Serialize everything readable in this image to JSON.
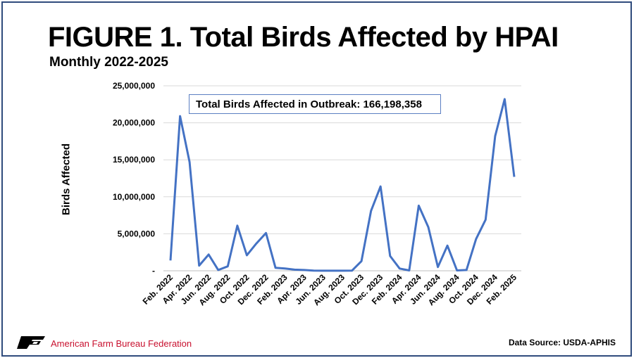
{
  "title": "FIGURE 1. Total Birds Affected by HPAI",
  "subtitle": "Monthly 2022-2025",
  "annotation": "Total Birds Affected in Outbreak: 166,198,358",
  "organization": "American Farm Bureau Federation",
  "source": "Data Source:  USDA-APHIS",
  "colors": {
    "line": "#4472c4",
    "frame": "#2f4b7c",
    "org": "#c8102e",
    "annotation_border": "#5b7fc2"
  },
  "chart_data": {
    "type": "line",
    "title": "FIGURE 1. Total Birds Affected by HPAI",
    "subtitle": "Monthly 2022-2025",
    "xlabel": "",
    "ylabel": "Birds Affected",
    "ylim": [
      0,
      25000000
    ],
    "yticks": [
      0,
      5000000,
      10000000,
      15000000,
      20000000,
      25000000
    ],
    "ytick_labels": [
      "-",
      "5,000,000",
      "10,000,000",
      "15,000,000",
      "20,000,000",
      "25,000,000"
    ],
    "grid": true,
    "legend": "none",
    "x": [
      "Feb. 2022",
      "Mar. 2022",
      "Apr. 2022",
      "May 2022",
      "Jun. 2022",
      "Jul. 2022",
      "Aug. 2022",
      "Sep. 2022",
      "Oct. 2022",
      "Nov. 2022",
      "Dec. 2022",
      "Jan. 2023",
      "Feb. 2023",
      "Mar. 2023",
      "Apr. 2023",
      "May 2023",
      "Jun. 2023",
      "Jul. 2023",
      "Aug. 2023",
      "Sep. 2023",
      "Oct. 2023",
      "Nov. 2023",
      "Dec. 2023",
      "Jan. 2024",
      "Feb. 2024",
      "Mar. 2024",
      "Apr. 2024",
      "May 2024",
      "Jun. 2024",
      "Jul. 2024",
      "Aug. 2024",
      "Sep. 2024",
      "Oct. 2024",
      "Nov. 2024",
      "Dec. 2024",
      "Jan. 2025",
      "Feb. 2025"
    ],
    "xtick_labels": [
      "Feb. 2022",
      "Apr. 2022",
      "Jun. 2022",
      "Aug. 2022",
      "Oct. 2022",
      "Dec. 2022",
      "Feb. 2023",
      "Apr. 2023",
      "Jun. 2023",
      "Aug. 2023",
      "Oct. 2023",
      "Dec. 2023",
      "Feb. 2024",
      "Apr. 2024",
      "Jun. 2024",
      "Aug. 2024",
      "Oct. 2024",
      "Dec. 2024",
      "Feb. 2025"
    ],
    "series": [
      {
        "values": [
          1400000,
          20900000,
          14700000,
          700000,
          2200000,
          100000,
          600000,
          6100000,
          2100000,
          3700000,
          5100000,
          400000,
          300000,
          150000,
          100000,
          20000,
          10000,
          10000,
          10000,
          20000,
          1300000,
          8100000,
          11400000,
          2000000,
          300000,
          50000,
          8800000,
          5900000,
          500000,
          3400000,
          50000,
          100000,
          4300000,
          6900000,
          18200000,
          23200000,
          12700000
        ]
      }
    ]
  }
}
